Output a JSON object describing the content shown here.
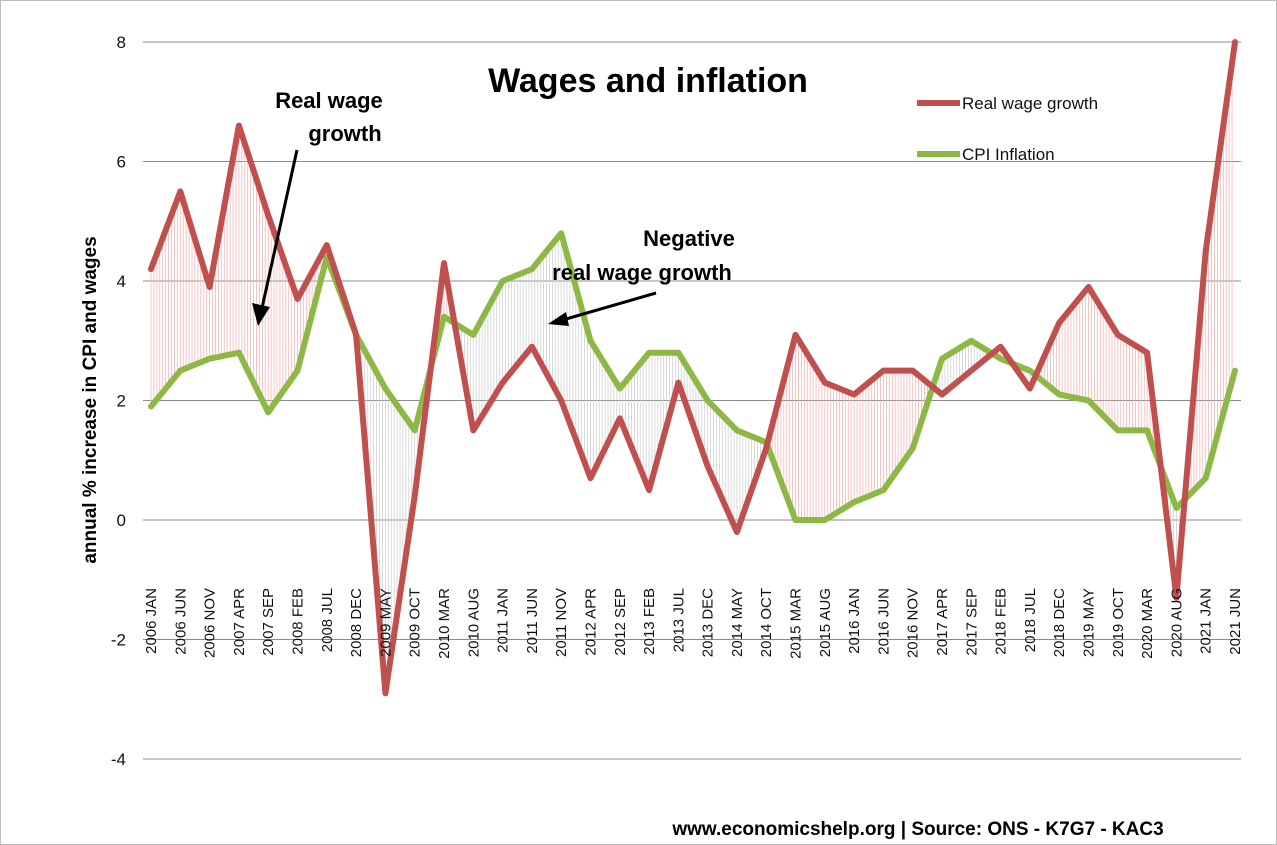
{
  "chart_data": {
    "type": "line",
    "title": "Wages and inflation",
    "ylabel": "annual % increase in CPI and wages",
    "xlabel": "",
    "ylim": [
      -4,
      8
    ],
    "yticks": [
      "-4",
      "-2",
      "0",
      "2",
      "4",
      "6",
      "8"
    ],
    "grid": true,
    "legend_position": "top-right",
    "x_tick_labels": [
      "2006 JAN",
      "2006 JUN",
      "2006 NOV",
      "2007 APR",
      "2007 SEP",
      "2008 FEB",
      "2008 JUL",
      "2008 DEC",
      "2009 MAY",
      "2009 OCT",
      "2010 MAR",
      "2010 AUG",
      "2011 JAN",
      "2011 JUN",
      "2011 NOV",
      "2012 APR",
      "2012 SEP",
      "2013 FEB",
      "2013 JUL",
      "2013 DEC",
      "2014 MAY",
      "2014 OCT",
      "2015 MAR",
      "2015 AUG",
      "2016 JAN",
      "2016 JUN",
      "2016 NOV",
      "2017 APR",
      "2017 SEP",
      "2018 FEB",
      "2018 JUL",
      "2018 DEC",
      "2019 MAY",
      "2019 OCT",
      "2020 MAR",
      "2020 AUG",
      "2021 JAN",
      "2021 JUN"
    ],
    "series": [
      {
        "name": "Real wage growth",
        "color": "#c0504d",
        "points": [
          [
            "2006 JAN",
            4.2
          ],
          [
            "2006 JUN",
            5.5
          ],
          [
            "2006 NOV",
            3.9
          ],
          [
            "2007 APR",
            6.6
          ],
          [
            "2007 SEP",
            5.1
          ],
          [
            "2008 FEB",
            3.7
          ],
          [
            "2008 JUL",
            4.6
          ],
          [
            "2008 DEC",
            3.1
          ],
          [
            "2009 MAY",
            -2.9
          ],
          [
            "2009 OCT",
            0.4
          ],
          [
            "2010 MAR",
            4.3
          ],
          [
            "2010 AUG",
            1.5
          ],
          [
            "2011 JAN",
            2.3
          ],
          [
            "2011 JUN",
            2.9
          ],
          [
            "2011 NOV",
            2.0
          ],
          [
            "2012 APR",
            0.7
          ],
          [
            "2012 SEP",
            1.7
          ],
          [
            "2013 FEB",
            0.5
          ],
          [
            "2013 JUL",
            2.3
          ],
          [
            "2013 DEC",
            0.9
          ],
          [
            "2014 MAY",
            -0.2
          ],
          [
            "2014 OCT",
            1.2
          ],
          [
            "2015 MAR",
            3.1
          ],
          [
            "2015 AUG",
            2.3
          ],
          [
            "2016 JAN",
            2.1
          ],
          [
            "2016 JUN",
            2.5
          ],
          [
            "2016 NOV",
            2.5
          ],
          [
            "2017 APR",
            2.1
          ],
          [
            "2017 SEP",
            2.5
          ],
          [
            "2018 FEB",
            2.9
          ],
          [
            "2018 JUL",
            2.2
          ],
          [
            "2018 DEC",
            3.3
          ],
          [
            "2019 MAY",
            3.9
          ],
          [
            "2019 OCT",
            3.1
          ],
          [
            "2020 MAR",
            2.8
          ],
          [
            "2020 AUG",
            -1.3
          ],
          [
            "2021 JAN",
            4.5
          ],
          [
            "2021 JUN",
            8.0
          ]
        ]
      },
      {
        "name": "CPI Inflation",
        "color": "#8db845",
        "points": [
          [
            "2006 JAN",
            1.9
          ],
          [
            "2006 JUN",
            2.5
          ],
          [
            "2006 NOV",
            2.7
          ],
          [
            "2007 APR",
            2.8
          ],
          [
            "2007 SEP",
            1.8
          ],
          [
            "2008 FEB",
            2.5
          ],
          [
            "2008 JUL",
            4.4
          ],
          [
            "2008 DEC",
            3.1
          ],
          [
            "2009 MAY",
            2.2
          ],
          [
            "2009 OCT",
            1.5
          ],
          [
            "2010 MAR",
            3.4
          ],
          [
            "2010 AUG",
            3.1
          ],
          [
            "2011 JAN",
            4.0
          ],
          [
            "2011 JUN",
            4.2
          ],
          [
            "2011 NOV",
            4.8
          ],
          [
            "2012 APR",
            3.0
          ],
          [
            "2012 SEP",
            2.2
          ],
          [
            "2013 FEB",
            2.8
          ],
          [
            "2013 JUL",
            2.8
          ],
          [
            "2013 DEC",
            2.0
          ],
          [
            "2014 MAY",
            1.5
          ],
          [
            "2014 OCT",
            1.3
          ],
          [
            "2015 MAR",
            0.0
          ],
          [
            "2015 AUG",
            0.0
          ],
          [
            "2016 JAN",
            0.3
          ],
          [
            "2016 JUN",
            0.5
          ],
          [
            "2016 NOV",
            1.2
          ],
          [
            "2017 APR",
            2.7
          ],
          [
            "2017 SEP",
            3.0
          ],
          [
            "2018 FEB",
            2.7
          ],
          [
            "2018 JUL",
            2.5
          ],
          [
            "2018 DEC",
            2.1
          ],
          [
            "2019 MAY",
            2.0
          ],
          [
            "2019 OCT",
            1.5
          ],
          [
            "2020 MAR",
            1.5
          ],
          [
            "2020 AUG",
            0.2
          ],
          [
            "2021 JAN",
            0.7
          ],
          [
            "2021 JUN",
            2.5
          ]
        ]
      }
    ],
    "annotations": [
      {
        "lines": [
          "Real wage",
          "growth"
        ]
      },
      {
        "lines": [
          "Negative",
          "real wage growth"
        ]
      }
    ]
  },
  "footer": "www.economicshelp.org | Source: ONS - K7G7 - KAC3"
}
